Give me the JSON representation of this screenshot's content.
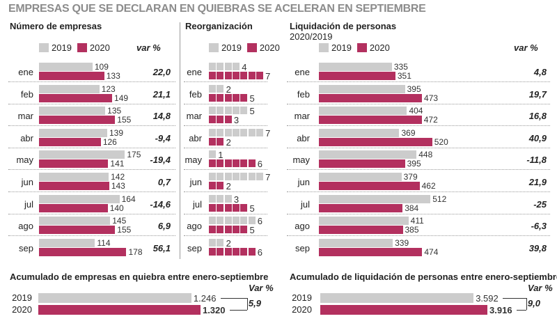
{
  "title": "EMPRESAS QUE SE DECLARAN EN QUIEBRAS SE ACELERAN EN SEPTIEMBRE",
  "colors": {
    "y2019": "#cccccc",
    "y2020": "#b3305f"
  },
  "legend": {
    "y2019": "2019",
    "y2020": "2020"
  },
  "var_header": "var %",
  "chart_data": [
    {
      "type": "bar",
      "title": "Número de empresas",
      "categories": [
        "ene",
        "feb",
        "mar",
        "abr",
        "may",
        "jun",
        "jul",
        "ago",
        "sep"
      ],
      "series": [
        {
          "name": "2019",
          "values": [
            109,
            123,
            135,
            139,
            175,
            142,
            164,
            145,
            114
          ]
        },
        {
          "name": "2020",
          "values": [
            133,
            149,
            155,
            126,
            141,
            143,
            140,
            155,
            178
          ]
        }
      ],
      "var_pct": [
        "22,0",
        "21,1",
        "14,8",
        "-9,4",
        "-19,4",
        "0,7",
        "-14,6",
        "6,9",
        "56,1"
      ]
    },
    {
      "type": "bar",
      "title": "Reorganización",
      "categories": [
        "ene",
        "feb",
        "mar",
        "abr",
        "may",
        "jun",
        "jul",
        "ago",
        "sep"
      ],
      "series": [
        {
          "name": "2019",
          "values": [
            4,
            2,
            5,
            7,
            1,
            7,
            3,
            6,
            2
          ]
        },
        {
          "name": "2020",
          "values": [
            7,
            5,
            3,
            2,
            6,
            2,
            5,
            5,
            6
          ]
        }
      ]
    },
    {
      "type": "bar",
      "title": "Liquidación de personas",
      "subtitle": "2020/2019",
      "categories": [
        "ene",
        "feb",
        "mar",
        "abr",
        "may",
        "jun",
        "jul",
        "ago",
        "sep"
      ],
      "series": [
        {
          "name": "2019",
          "values": [
            335,
            395,
            404,
            369,
            448,
            379,
            512,
            411,
            339
          ]
        },
        {
          "name": "2020",
          "values": [
            351,
            473,
            472,
            520,
            395,
            462,
            384,
            385,
            474
          ]
        }
      ],
      "var_pct": [
        "4,8",
        "19,7",
        "16,8",
        "40,9",
        "-11,8",
        "21,9",
        "-25",
        "-6,3",
        "39,8"
      ]
    },
    {
      "type": "bar",
      "title": "Acumulado de empresas en quiebra entre enero-septiembre",
      "categories": [
        "2019",
        "2020"
      ],
      "values": [
        1246,
        1320
      ],
      "value_labels": [
        "1.246",
        "1.320"
      ],
      "var_header": "Var %",
      "var_pct": "5,9"
    },
    {
      "type": "bar",
      "title": "Acumulado de liquidación de personas entre enero-septiembre",
      "categories": [
        "2019",
        "2020"
      ],
      "values": [
        3592,
        3916
      ],
      "value_labels": [
        "3.592",
        "3.916"
      ],
      "var_header": "Var %",
      "var_pct": "9,0"
    }
  ]
}
